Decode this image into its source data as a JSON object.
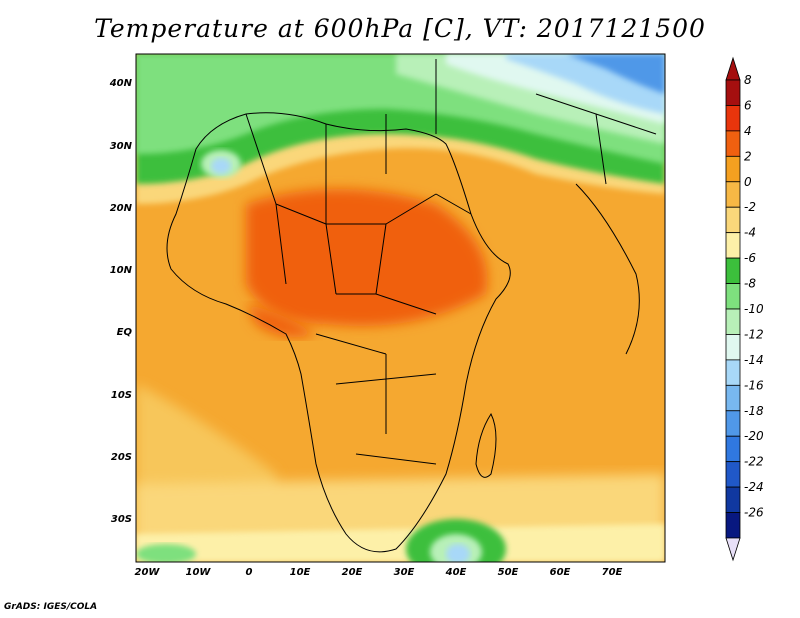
{
  "title": "Temperature at 600hPa [C], VT: 2017121500",
  "credit": "GrADS: IGES/COLA",
  "map": {
    "lat_labels": [
      "40N",
      "30N",
      "20N",
      "10N",
      "EQ",
      "10S",
      "20S",
      "30S"
    ],
    "lon_labels": [
      "20W",
      "10W",
      "0",
      "10E",
      "20E",
      "30E",
      "40E",
      "50E",
      "60E",
      "70E"
    ]
  },
  "colorbar": {
    "labels": [
      "8",
      "6",
      "4",
      "2",
      "0",
      "-2",
      "-4",
      "-6",
      "-8",
      "-10",
      "-12",
      "-14",
      "-16",
      "-18",
      "-20",
      "-22",
      "-24",
      "-26"
    ],
    "colors": [
      "#a50f0f",
      "#e8350c",
      "#f06010",
      "#f5a020",
      "#f7b845",
      "#fad77a",
      "#fdf0a8",
      "#3cbf3c",
      "#7ee07e",
      "#b8f0b8",
      "#e0f8f0",
      "#a8d8f8",
      "#78b8f0",
      "#5098e8",
      "#3078e0",
      "#2058c8",
      "#1038a0",
      "#081880"
    ]
  }
}
